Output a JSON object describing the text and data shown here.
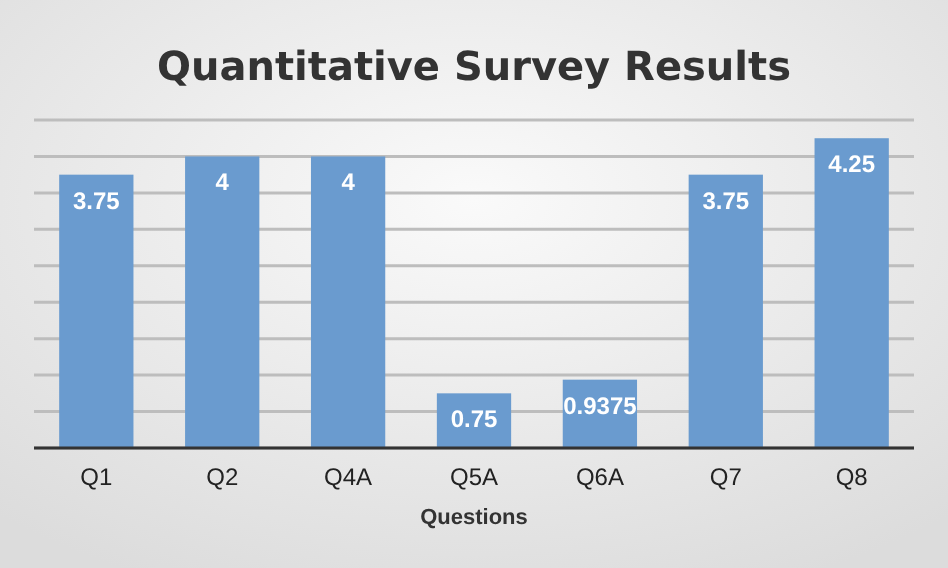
{
  "chart_data": {
    "type": "bar",
    "title": "Quantitative Survey Results",
    "xlabel": "Questions",
    "categories": [
      "Q1",
      "Q2",
      "Q4A",
      "Q5A",
      "Q6A",
      "Q7",
      "Q8"
    ],
    "values": [
      3.75,
      4,
      4,
      0.75,
      0.9375,
      3.75,
      4.25
    ],
    "color": "#6a9bcf",
    "ylim": [
      0,
      4.5
    ],
    "yticks": [
      {
        "value": 0,
        "label": null
      },
      {
        "value": 0.5,
        "label": null
      },
      {
        "value": 1,
        "label": null
      },
      {
        "value": 1.5,
        "label": null
      },
      {
        "value": 2,
        "label": null
      },
      {
        "value": 2.5,
        "label": null
      },
      {
        "value": 3,
        "label": null
      },
      {
        "value": 3.5,
        "label": null
      },
      {
        "value": 4,
        "label": null
      },
      {
        "value": 4.5,
        "label": null
      }
    ],
    "grid": "y",
    "data_labels": true,
    "tick_labels": "x"
  }
}
